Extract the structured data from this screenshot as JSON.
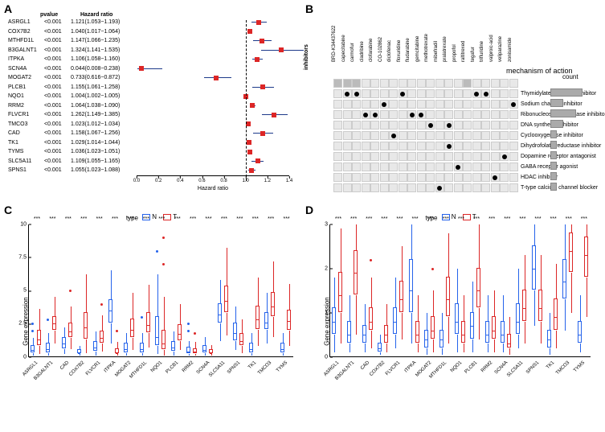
{
  "panels": {
    "a": "A",
    "b": "B",
    "c": "C",
    "d": "D"
  },
  "forest": {
    "headers": {
      "pvalue": "pvalue",
      "hr": "Hazard ratio"
    },
    "xlabel": "Hazard ratio",
    "xlim": [
      0,
      1.4
    ],
    "xticks": [
      0,
      0.2,
      0.4,
      0.6,
      0.8,
      1.0,
      1.2,
      1.4
    ],
    "ref_line": 1.0,
    "gene_color": "#000000",
    "line_color": "#1e3a8a",
    "box_color": "#dc2626",
    "rows": [
      {
        "gene": "ASRGL1",
        "pvalue": "<0.001",
        "hr": "1.121(1.053~1.193)",
        "est": 1.121,
        "lo": 1.053,
        "hi": 1.193
      },
      {
        "gene": "COX7B2",
        "pvalue": "<0.001",
        "hr": "1.040(1.017~1.064)",
        "est": 1.04,
        "lo": 1.017,
        "hi": 1.064
      },
      {
        "gene": "MTHFD1L",
        "pvalue": "<0.001",
        "hr": "1.147(1.066~1.235)",
        "est": 1.147,
        "lo": 1.066,
        "hi": 1.235
      },
      {
        "gene": "B3GALNT1",
        "pvalue": "<0.001",
        "hr": "1.324(1.141~1.535)",
        "est": 1.324,
        "lo": 1.141,
        "hi": 1.535
      },
      {
        "gene": "ITPKA",
        "pvalue": "<0.001",
        "hr": "1.106(1.058~1.160)",
        "est": 1.106,
        "lo": 1.058,
        "hi": 1.16
      },
      {
        "gene": "SCN4A",
        "pvalue": "<0.001",
        "hr": "0.044(0.008~0.238)",
        "est": 0.044,
        "lo": 0.008,
        "hi": 0.238
      },
      {
        "gene": "MOGAT2",
        "pvalue": "<0.001",
        "hr": "0.733(0.616~0.872)",
        "est": 0.733,
        "lo": 0.616,
        "hi": 0.872
      },
      {
        "gene": "PLCB1",
        "pvalue": "<0.001",
        "hr": "1.155(1.061~1.258)",
        "est": 1.155,
        "lo": 1.061,
        "hi": 1.258
      },
      {
        "gene": "NQO1",
        "pvalue": "<0.001",
        "hr": "1.004(1.002~1.005)",
        "est": 1.004,
        "lo": 1.002,
        "hi": 1.005
      },
      {
        "gene": "RRM2",
        "pvalue": "<0.001",
        "hr": "1.064(1.038~1.090)",
        "est": 1.064,
        "lo": 1.038,
        "hi": 1.09
      },
      {
        "gene": "FLVCR1",
        "pvalue": "<0.001",
        "hr": "1.262(1.149~1.385)",
        "est": 1.262,
        "lo": 1.149,
        "hi": 1.385
      },
      {
        "gene": "TMCO3",
        "pvalue": "<0.001",
        "hr": "1.023(1.012~1.034)",
        "est": 1.023,
        "lo": 1.012,
        "hi": 1.034
      },
      {
        "gene": "CAD",
        "pvalue": "<0.001",
        "hr": "1.158(1.067~1.256)",
        "est": 1.158,
        "lo": 1.067,
        "hi": 1.256
      },
      {
        "gene": "TK1",
        "pvalue": "<0.001",
        "hr": "1.029(1.014~1.044)",
        "est": 1.029,
        "lo": 1.014,
        "hi": 1.044
      },
      {
        "gene": "TYMS",
        "pvalue": "<0.001",
        "hr": "1.036(1.023~1.051)",
        "est": 1.036,
        "lo": 1.023,
        "hi": 1.051
      },
      {
        "gene": "SLC5A11",
        "pvalue": "<0.001",
        "hr": "1.109(1.055~1.165)",
        "est": 1.109,
        "lo": 1.055,
        "hi": 1.165
      },
      {
        "gene": "SPNS1",
        "pvalue": "<0.001",
        "hr": "1.055(1.023~1.088)",
        "est": 1.055,
        "lo": 1.023,
        "hi": 1.088
      }
    ]
  },
  "panelB": {
    "side_label": "inhibitors",
    "header_label": "mechanism of action",
    "count_label": "count",
    "drugs": [
      "BRD-K34437622",
      "capecitabine",
      "carmofur",
      "cladribine",
      "clofarabine",
      "CO-102862",
      "diclofenac",
      "floxuridine",
      "fludarabine",
      "gemcitabine",
      "methotrexate",
      "mibefradil",
      "pralatrexate",
      "propofol",
      "raltitrexed",
      "tegafur",
      "trifluridine",
      "valproic-acid",
      "veliparazine",
      "zonisamide"
    ],
    "mechanisms": [
      {
        "name": "Thymidylate synthase inhibitor",
        "dots": [
          1,
          2,
          7,
          15,
          16
        ],
        "count": 5
      },
      {
        "name": "Sodium channel inhibitor",
        "dots": [
          5,
          19
        ],
        "count": 2
      },
      {
        "name": "Ribonucleoside reductase inhibitor",
        "dots": [
          3,
          4,
          8,
          9
        ],
        "count": 4
      },
      {
        "name": "DNA synthesis inhibitor",
        "dots": [
          10,
          12
        ],
        "count": 2
      },
      {
        "name": "Cyclooxygenase inhibitor",
        "dots": [
          6
        ],
        "count": 1
      },
      {
        "name": "Dihydrofolate reductase inhibitor",
        "dots": [
          12
        ],
        "count": 1
      },
      {
        "name": "Dopamine receptor antagonist",
        "dots": [
          18
        ],
        "count": 1
      },
      {
        "name": "GABA receptor agonist",
        "dots": [
          13
        ],
        "count": 1
      },
      {
        "name": "HDAC inhibitor",
        "dots": [
          17
        ],
        "count": 1
      },
      {
        "name": "T-type calcium channel blocker",
        "dots": [
          11
        ],
        "count": 1
      }
    ],
    "inhibitor_highlight": [
      0,
      1,
      2,
      14
    ],
    "cell_color": "#e8e8e8",
    "cell_highlight": "#bbbbbb",
    "bar_color": "#aaaaaa"
  },
  "boxplot": {
    "legend": {
      "type": "type",
      "n": "N",
      "t": "T"
    },
    "ylabel": "Gene expression",
    "genes": [
      "ASRGL1",
      "B3GALNT1",
      "CAD",
      "COX7B2",
      "FLVCR1",
      "ITPKA",
      "MOGAT2",
      "MTHFD1L",
      "NQO1",
      "PLCB1",
      "RRM2",
      "SCN4A",
      "SLC5A11",
      "SPNS1",
      "TK1",
      "TMCO3",
      "TYMS"
    ],
    "sig": "***",
    "colors": {
      "n": "#2563eb",
      "t": "#dc2626"
    },
    "c": {
      "ylim": [
        0,
        10
      ],
      "yticks": [
        0,
        2.5,
        5.0,
        7.5,
        10.0
      ],
      "data": [
        {
          "n": {
            "q1": 0.3,
            "med": 0.5,
            "q3": 0.8,
            "lo": 0.1,
            "hi": 1.4,
            "out": [
              2.0,
              2.5
            ]
          },
          "t": {
            "q1": 0.8,
            "med": 1.3,
            "q3": 2.0,
            "lo": 0.2,
            "hi": 3.6,
            "out": []
          }
        },
        {
          "n": {
            "q1": 0.3,
            "med": 0.6,
            "q3": 1.0,
            "lo": 0.1,
            "hi": 1.8,
            "out": [
              2.8
            ]
          },
          "t": {
            "q1": 2.0,
            "med": 2.5,
            "q3": 3.0,
            "lo": 1.0,
            "hi": 4.5,
            "out": []
          }
        },
        {
          "n": {
            "q1": 0.6,
            "med": 1.0,
            "q3": 1.4,
            "lo": 0.2,
            "hi": 2.2,
            "out": []
          },
          "t": {
            "q1": 1.4,
            "med": 1.9,
            "q3": 2.5,
            "lo": 0.6,
            "hi": 3.8,
            "out": [
              5.0
            ]
          }
        },
        {
          "n": {
            "q1": 0.2,
            "med": 0.3,
            "q3": 0.5,
            "lo": 0.1,
            "hi": 0.8,
            "out": []
          },
          "t": {
            "q1": 1.3,
            "med": 2.2,
            "q3": 3.3,
            "lo": 0.3,
            "hi": 6.2,
            "out": []
          }
        },
        {
          "n": {
            "q1": 0.4,
            "med": 0.7,
            "q3": 1.1,
            "lo": 0.1,
            "hi": 1.9,
            "out": []
          },
          "t": {
            "q1": 1.0,
            "med": 1.4,
            "q3": 1.9,
            "lo": 0.4,
            "hi": 3.1,
            "out": [
              4.0
            ]
          }
        },
        {
          "n": {
            "q1": 2.5,
            "med": 3.5,
            "q3": 4.3,
            "lo": 1.0,
            "hi": 6.5,
            "out": []
          },
          "t": {
            "q1": 0.2,
            "med": 0.3,
            "q3": 0.6,
            "lo": 0.1,
            "hi": 1.1,
            "out": [
              2.0
            ]
          }
        },
        {
          "n": {
            "q1": 0.3,
            "med": 0.6,
            "q3": 1.0,
            "lo": 0.1,
            "hi": 1.8,
            "out": []
          },
          "t": {
            "q1": 1.4,
            "med": 2.0,
            "q3": 2.8,
            "lo": 0.5,
            "hi": 4.8,
            "out": []
          }
        },
        {
          "n": {
            "q1": 0.3,
            "med": 0.6,
            "q3": 1.0,
            "lo": 0.1,
            "hi": 1.8,
            "out": [
              3.0
            ]
          },
          "t": {
            "q1": 1.8,
            "med": 2.4,
            "q3": 3.3,
            "lo": 0.7,
            "hi": 5.4,
            "out": []
          }
        },
        {
          "n": {
            "q1": 0.8,
            "med": 1.5,
            "q3": 3.0,
            "lo": 0.2,
            "hi": 6.2,
            "out": [
              8.0
            ]
          },
          "t": {
            "q1": 0.5,
            "med": 1.0,
            "q3": 2.0,
            "lo": 0.1,
            "hi": 4.5,
            "out": [
              7.0,
              9.0
            ]
          }
        },
        {
          "n": {
            "q1": 0.4,
            "med": 0.7,
            "q3": 1.1,
            "lo": 0.1,
            "hi": 1.9,
            "out": []
          },
          "t": {
            "q1": 1.2,
            "med": 1.7,
            "q3": 2.4,
            "lo": 0.5,
            "hi": 4.0,
            "out": []
          }
        },
        {
          "n": {
            "q1": 0.2,
            "med": 0.4,
            "q3": 0.7,
            "lo": 0.1,
            "hi": 1.2,
            "out": [
              2.0,
              2.5
            ]
          },
          "t": {
            "q1": 0.2,
            "med": 0.4,
            "q3": 0.6,
            "lo": 0.1,
            "hi": 1.1,
            "out": [
              1.8
            ]
          }
        },
        {
          "n": {
            "q1": 0.3,
            "med": 0.5,
            "q3": 0.8,
            "lo": 0.1,
            "hi": 1.5,
            "out": []
          },
          "t": {
            "q1": 0.2,
            "med": 0.3,
            "q3": 0.5,
            "lo": 0.1,
            "hi": 0.9,
            "out": []
          }
        },
        {
          "n": {
            "q1": 2.5,
            "med": 3.2,
            "q3": 4.0,
            "lo": 1.2,
            "hi": 5.8,
            "out": []
          },
          "t": {
            "q1": 3.3,
            "med": 4.2,
            "q3": 5.3,
            "lo": 1.6,
            "hi": 8.2,
            "out": []
          }
        },
        {
          "n": {
            "q1": 1.2,
            "med": 1.8,
            "q3": 2.5,
            "lo": 0.5,
            "hi": 3.8,
            "out": []
          },
          "t": {
            "q1": 0.8,
            "med": 1.2,
            "q3": 1.7,
            "lo": 0.3,
            "hi": 2.8,
            "out": []
          }
        },
        {
          "n": {
            "q1": 0.3,
            "med": 0.6,
            "q3": 1.0,
            "lo": 0.1,
            "hi": 1.8,
            "out": []
          },
          "t": {
            "q1": 2.0,
            "med": 2.8,
            "q3": 3.8,
            "lo": 0.8,
            "hi": 6.0,
            "out": []
          }
        },
        {
          "n": {
            "q1": 2.0,
            "med": 2.6,
            "q3": 3.3,
            "lo": 1.0,
            "hi": 4.8,
            "out": []
          },
          "t": {
            "q1": 3.0,
            "med": 3.8,
            "q3": 4.8,
            "lo": 1.5,
            "hi": 7.2,
            "out": []
          }
        },
        {
          "n": {
            "q1": 0.3,
            "med": 0.6,
            "q3": 1.0,
            "lo": 0.1,
            "hi": 1.8,
            "out": []
          },
          "t": {
            "q1": 2.0,
            "med": 2.7,
            "q3": 3.5,
            "lo": 0.8,
            "hi": 5.5,
            "out": []
          }
        }
      ]
    },
    "d": {
      "ylim": [
        0,
        3
      ],
      "yticks": [
        0,
        1,
        2,
        3
      ],
      "data": [
        {
          "n": {
            "q1": 0.5,
            "med": 0.8,
            "q3": 1.1,
            "lo": 0.1,
            "hi": 1.8,
            "out": []
          },
          "t": {
            "q1": 1.0,
            "med": 1.4,
            "q3": 1.9,
            "lo": 0.3,
            "hi": 2.9,
            "out": []
          }
        },
        {
          "n": {
            "q1": 0.3,
            "med": 0.5,
            "q3": 0.8,
            "lo": 0.1,
            "hi": 1.4,
            "out": []
          },
          "t": {
            "q1": 1.4,
            "med": 1.9,
            "q3": 2.4,
            "lo": 0.5,
            "hi": 3.0,
            "out": []
          }
        },
        {
          "n": {
            "q1": 0.3,
            "med": 0.5,
            "q3": 0.7,
            "lo": 0.1,
            "hi": 1.2,
            "out": []
          },
          "t": {
            "q1": 0.6,
            "med": 0.8,
            "q3": 1.1,
            "lo": 0.2,
            "hi": 1.8,
            "out": [
              2.2
            ]
          }
        },
        {
          "n": {
            "q1": 0.1,
            "med": 0.2,
            "q3": 0.3,
            "lo": 0.05,
            "hi": 0.5,
            "out": []
          },
          "t": {
            "q1": 0.3,
            "med": 0.5,
            "q3": 0.7,
            "lo": 0.1,
            "hi": 1.2,
            "out": []
          }
        },
        {
          "n": {
            "q1": 0.5,
            "med": 0.8,
            "q3": 1.1,
            "lo": 0.2,
            "hi": 1.8,
            "out": []
          },
          "t": {
            "q1": 1.0,
            "med": 1.3,
            "q3": 1.7,
            "lo": 0.4,
            "hi": 2.5,
            "out": []
          }
        },
        {
          "n": {
            "q1": 1.0,
            "med": 1.5,
            "q3": 2.2,
            "lo": 0.3,
            "hi": 3.0,
            "out": []
          },
          "t": {
            "q1": 0.3,
            "med": 0.5,
            "q3": 0.8,
            "lo": 0.1,
            "hi": 1.4,
            "out": []
          }
        },
        {
          "n": {
            "q1": 0.2,
            "med": 0.4,
            "q3": 0.6,
            "lo": 0.05,
            "hi": 1.0,
            "out": []
          },
          "t": {
            "q1": 0.4,
            "med": 0.6,
            "q3": 0.9,
            "lo": 0.1,
            "hi": 1.5,
            "out": [
              2.0
            ]
          }
        },
        {
          "n": {
            "q1": 0.2,
            "med": 0.4,
            "q3": 0.6,
            "lo": 0.05,
            "hi": 1.0,
            "out": []
          },
          "t": {
            "q1": 0.9,
            "med": 1.3,
            "q3": 1.8,
            "lo": 0.3,
            "hi": 2.8,
            "out": []
          }
        },
        {
          "n": {
            "q1": 0.5,
            "med": 0.8,
            "q3": 1.2,
            "lo": 0.1,
            "hi": 2.0,
            "out": []
          },
          "t": {
            "q1": 0.3,
            "med": 0.5,
            "q3": 0.8,
            "lo": 0.1,
            "hi": 1.4,
            "out": []
          }
        },
        {
          "n": {
            "q1": 0.4,
            "med": 0.7,
            "q3": 1.0,
            "lo": 0.1,
            "hi": 1.7,
            "out": []
          },
          "t": {
            "q1": 1.1,
            "med": 1.5,
            "q3": 2.0,
            "lo": 0.4,
            "hi": 3.0,
            "out": []
          }
        },
        {
          "n": {
            "q1": 0.3,
            "med": 0.5,
            "q3": 0.8,
            "lo": 0.1,
            "hi": 1.4,
            "out": []
          },
          "t": {
            "q1": 0.4,
            "med": 0.6,
            "q3": 0.9,
            "lo": 0.1,
            "hi": 1.5,
            "out": []
          }
        },
        {
          "n": {
            "q1": 0.3,
            "med": 0.5,
            "q3": 0.8,
            "lo": 0.1,
            "hi": 1.4,
            "out": []
          },
          "t": {
            "q1": 0.2,
            "med": 0.3,
            "q3": 0.5,
            "lo": 0.05,
            "hi": 0.9,
            "out": []
          }
        },
        {
          "n": {
            "q1": 0.5,
            "med": 0.8,
            "q3": 1.2,
            "lo": 0.2,
            "hi": 2.0,
            "out": []
          },
          "t": {
            "q1": 0.8,
            "med": 1.1,
            "q3": 1.5,
            "lo": 0.3,
            "hi": 2.3,
            "out": []
          }
        },
        {
          "n": {
            "q1": 1.5,
            "med": 2.0,
            "q3": 2.5,
            "lo": 0.7,
            "hi": 3.0,
            "out": []
          },
          "t": {
            "q1": 0.8,
            "med": 1.1,
            "q3": 1.5,
            "lo": 0.3,
            "hi": 2.3,
            "out": []
          }
        },
        {
          "n": {
            "q1": 0.2,
            "med": 0.4,
            "q3": 0.6,
            "lo": 0.05,
            "hi": 1.0,
            "out": []
          },
          "t": {
            "q1": 0.6,
            "med": 0.9,
            "q3": 1.3,
            "lo": 0.2,
            "hi": 2.1,
            "out": []
          }
        },
        {
          "n": {
            "q1": 1.3,
            "med": 1.7,
            "q3": 2.2,
            "lo": 0.6,
            "hi": 3.0,
            "out": []
          },
          "t": {
            "q1": 1.9,
            "med": 2.4,
            "q3": 2.8,
            "lo": 1.0,
            "hi": 3.0,
            "out": []
          }
        },
        {
          "n": {
            "q1": 0.3,
            "med": 0.5,
            "q3": 0.8,
            "lo": 0.1,
            "hi": 1.4,
            "out": []
          },
          "t": {
            "q1": 1.8,
            "med": 2.3,
            "q3": 2.7,
            "lo": 0.9,
            "hi": 3.0,
            "out": []
          }
        }
      ]
    }
  }
}
